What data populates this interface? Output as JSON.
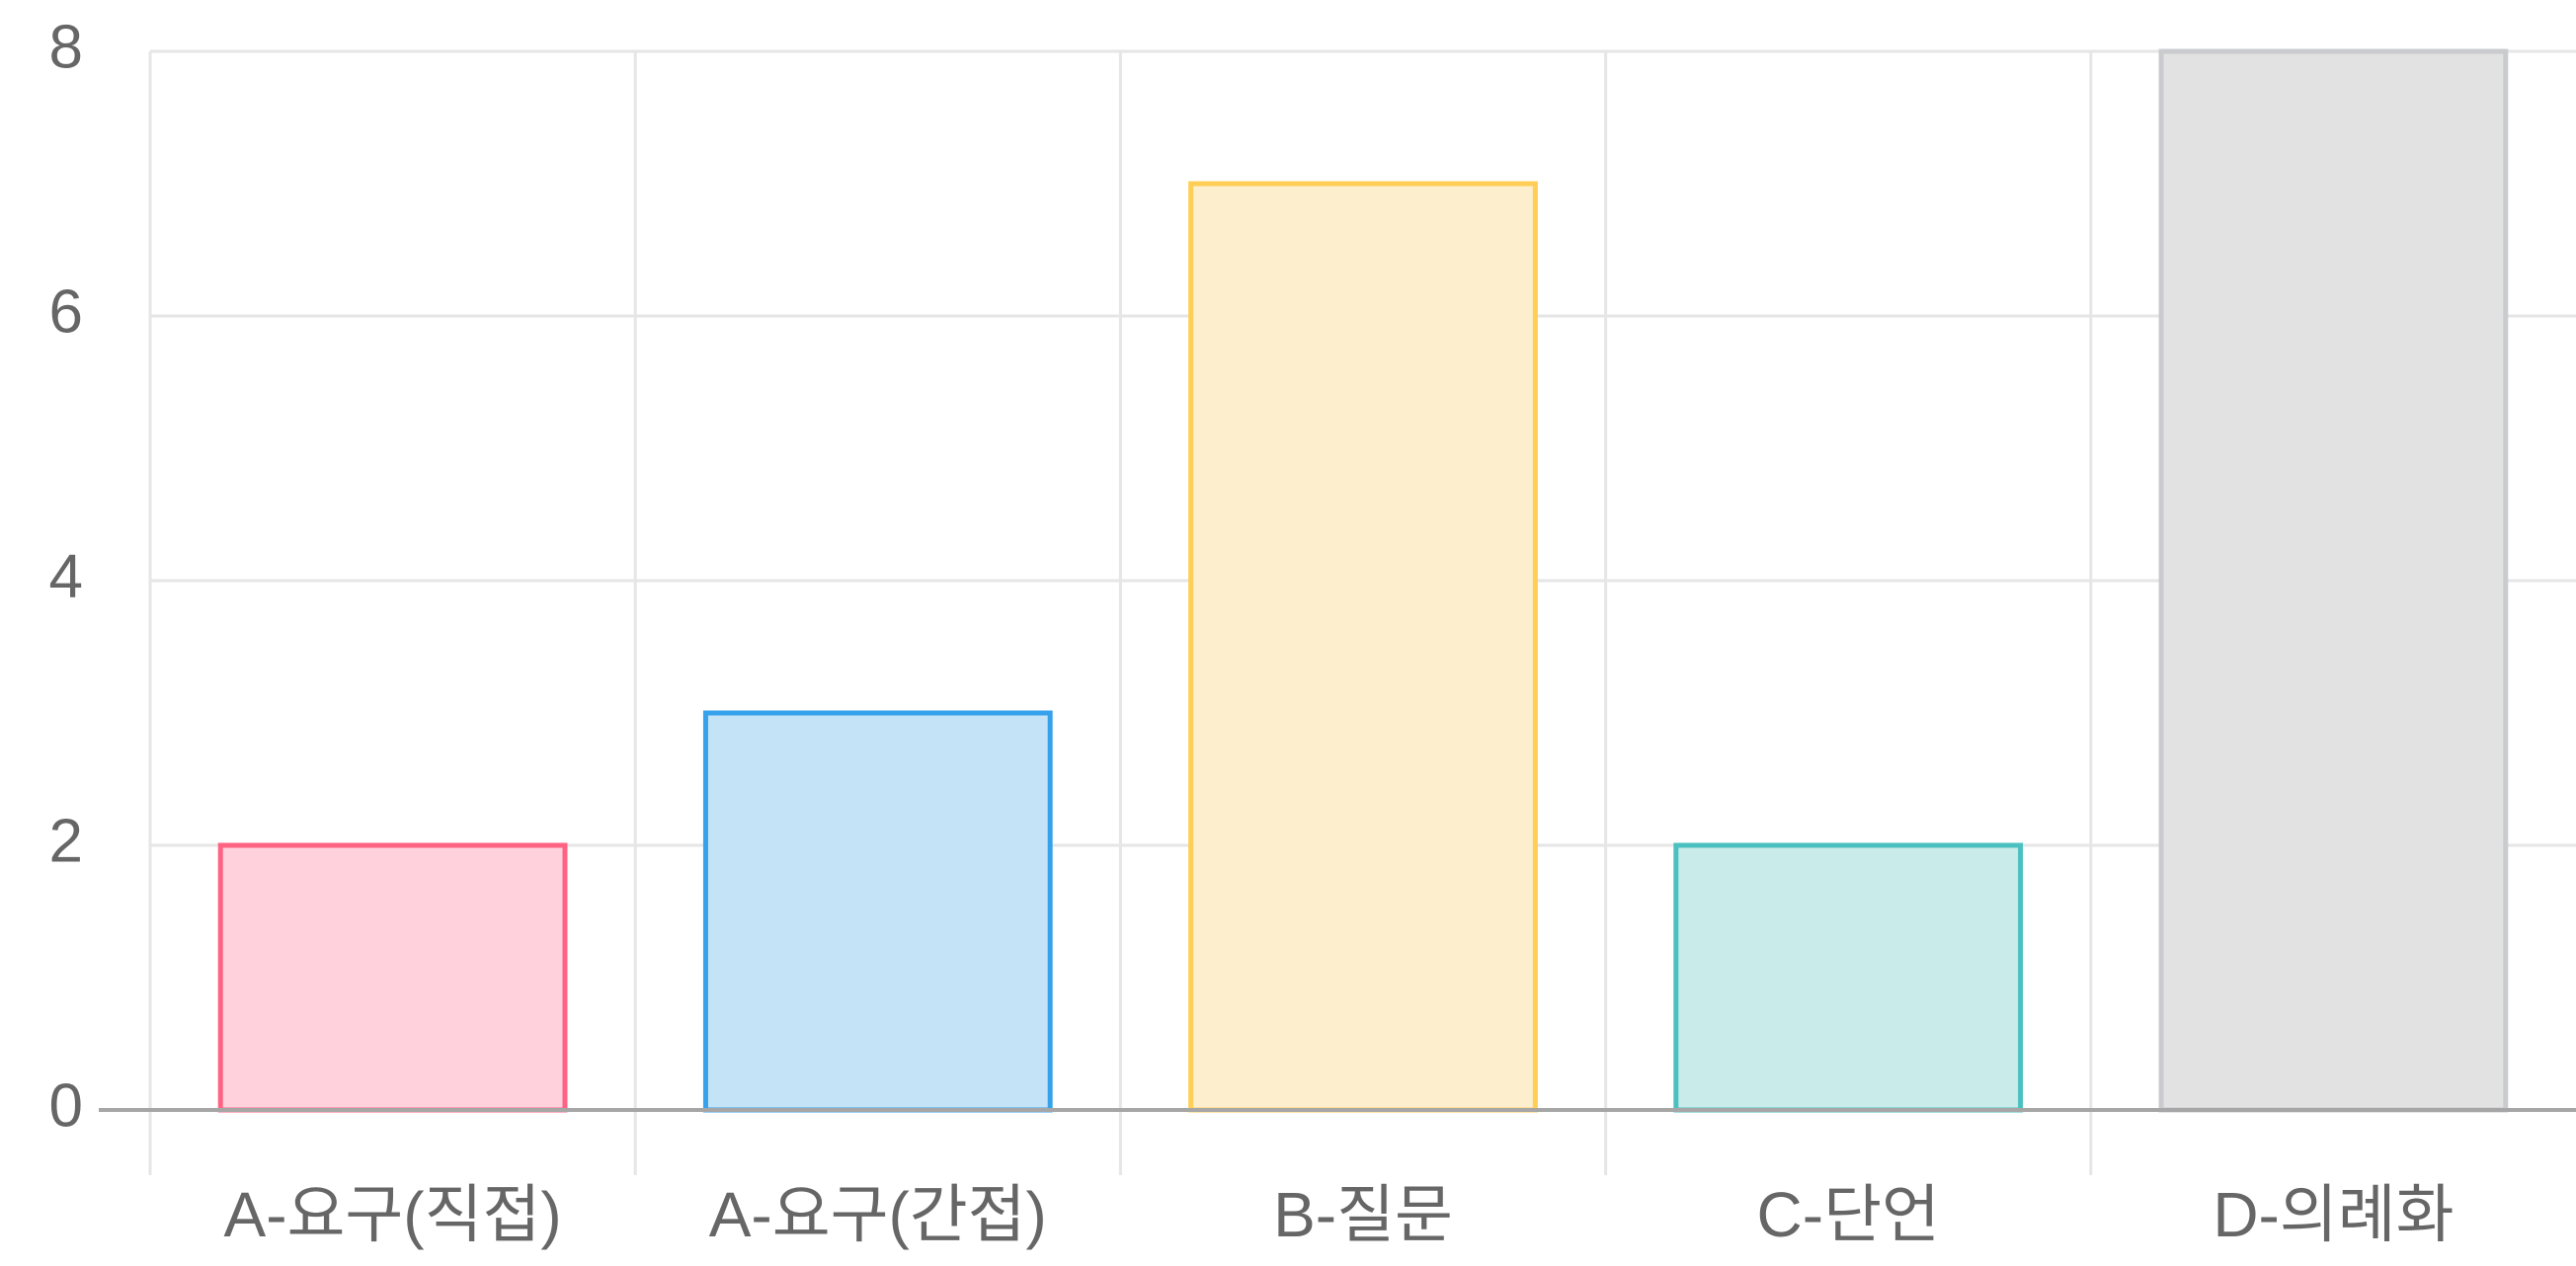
{
  "chart_data": {
    "type": "bar",
    "title": "",
    "xlabel": "",
    "ylabel": "",
    "categories": [
      "A-요구(직접)",
      "A-요구(간접)",
      "B-질문",
      "C-단언",
      "D-의례화"
    ],
    "values": [
      2,
      3,
      7,
      2,
      8
    ],
    "ylim": [
      0,
      8
    ],
    "yticks": [
      "0",
      "2",
      "4",
      "6",
      "8"
    ],
    "grid": true,
    "legend": "none",
    "bar_fill_colors": [
      "#ffd1dc",
      "#c5e3f7",
      "#fdefcd",
      "#c9ecea",
      "#e2e2e2"
    ],
    "bar_border_colors": [
      "#ff6384",
      "#36a2eb",
      "#ffce56",
      "#4bc0c0",
      "#c9cbcf"
    ]
  }
}
